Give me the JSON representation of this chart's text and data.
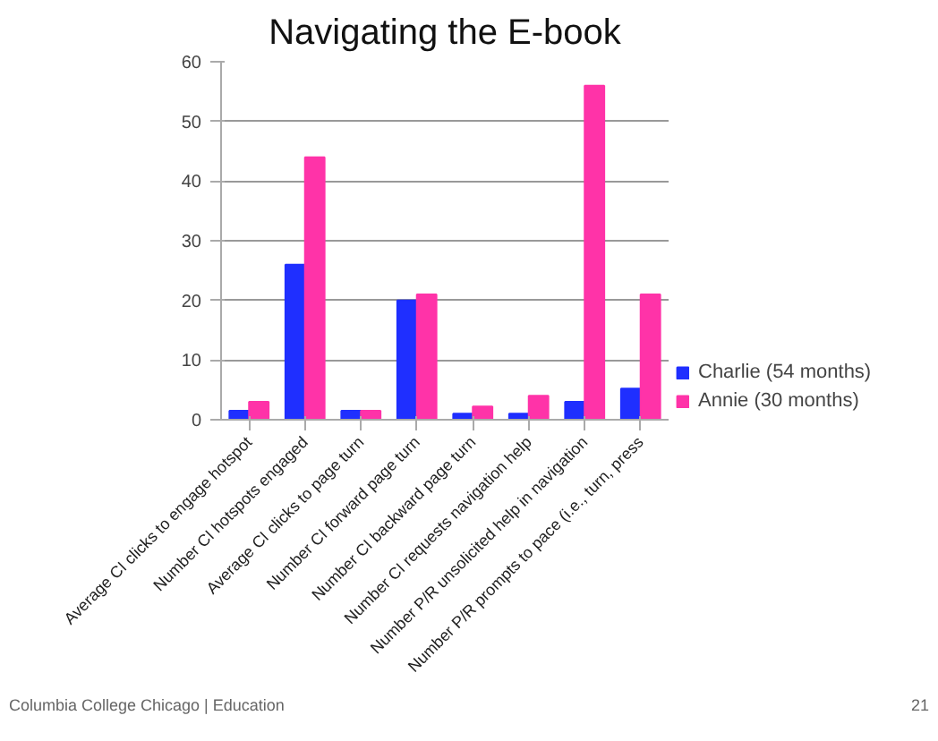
{
  "chart_data": {
    "type": "bar",
    "title": "Navigating the E-book",
    "categories": [
      "Average CI clicks to engage hotspot",
      "Number CI hotspots engaged",
      "Average CI clicks to page turn",
      "Number CI forward page turn",
      "Number CI backward page turn",
      "Number CI requests navigation help",
      "Number P/R unsolicited help in navigation",
      "Number P/R prompts to pace (i.e., turn, press"
    ],
    "series": [
      {
        "name": "Charlie (54 months)",
        "color": "#1f2fff",
        "values": [
          1.5,
          26,
          1.5,
          20,
          1,
          1,
          3,
          5.2
        ]
      },
      {
        "name": "Annie (30 months)",
        "color": "#ff33a8",
        "values": [
          3,
          44,
          1.5,
          21,
          2.2,
          4,
          56,
          21
        ]
      }
    ],
    "ylim": [
      0,
      60
    ],
    "yticks": [
      0,
      10,
      20,
      30,
      40,
      50,
      60
    ],
    "grid": "y",
    "legend": "right",
    "annotations": [
      "Columbia College Chicago | Education",
      "21"
    ]
  }
}
